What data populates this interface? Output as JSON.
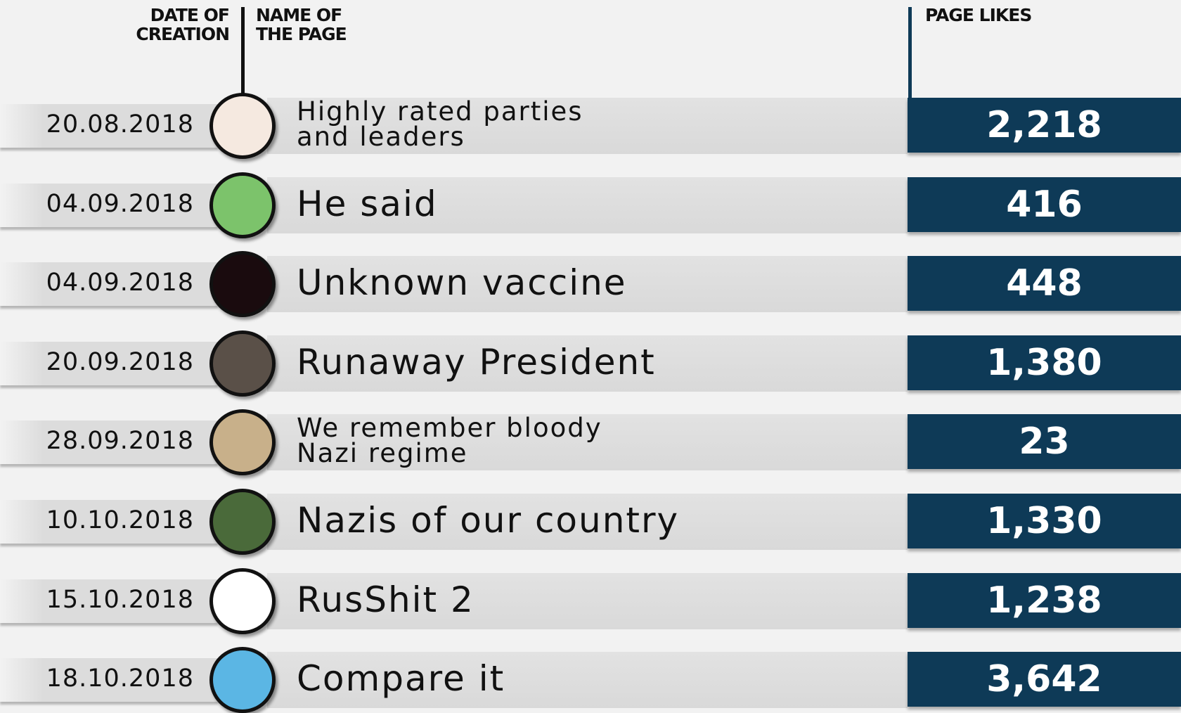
{
  "header": {
    "date": [
      "DATE OF",
      "CREATION"
    ],
    "name": [
      "NAME OF",
      "THE PAGE"
    ],
    "likes": [
      "PAGE LIKES"
    ]
  },
  "table": {
    "rows": [
      {
        "date": "20.08.2018",
        "name": [
          "Highly rated parties",
          "and leaders"
        ],
        "likes": "2,218"
      },
      {
        "date": "04.09.2018",
        "name": [
          "He said"
        ],
        "likes": "416"
      },
      {
        "date": "04.09.2018",
        "name": [
          "Unknown vaccine"
        ],
        "likes": "448"
      },
      {
        "date": "20.09.2018",
        "name": [
          "Runaway President"
        ],
        "likes": "1,380"
      },
      {
        "date": "28.09.2018",
        "name": [
          "We remember bloody",
          "Nazi regime"
        ],
        "likes": "23"
      },
      {
        "date": "10.10.2018",
        "name": [
          "Nazis of our country"
        ],
        "likes": "1,330"
      },
      {
        "date": "15.10.2018",
        "name": [
          "RusShit 2"
        ],
        "likes": "1,238"
      },
      {
        "date": "18.10.2018",
        "name": [
          "Compare it"
        ],
        "likes": "3,642"
      }
    ]
  }
}
